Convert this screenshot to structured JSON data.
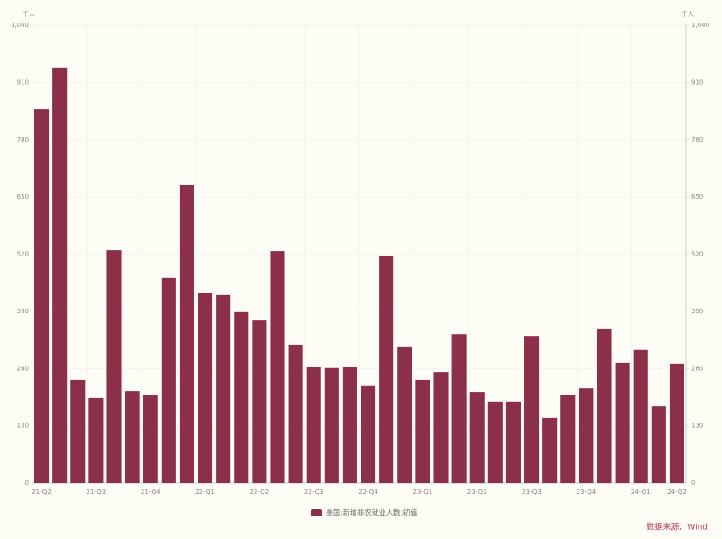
{
  "chart_data": {
    "type": "bar",
    "y_unit": "千人",
    "y2_unit": "千人",
    "categories": [
      "21-Q2",
      null,
      null,
      "21-Q3",
      null,
      null,
      "21-Q4",
      null,
      null,
      "22-Q1",
      null,
      null,
      "22-Q2",
      null,
      null,
      "22-Q3",
      null,
      null,
      "22-Q4",
      null,
      null,
      "23-Q1",
      null,
      null,
      "23-Q2",
      null,
      null,
      "23-Q3",
      null,
      null,
      "23-Q4",
      null,
      null,
      "24-Q1",
      null,
      "24-Q2"
    ],
    "series": [
      {
        "name": "美国:新增非农就业人数:初值",
        "color": "#8b3048",
        "values": [
          849,
          944,
          234,
          193,
          529,
          209,
          199,
          466,
          677,
          431,
          427,
          388,
          371,
          527,
          314,
          263,
          261,
          263,
          222,
          515,
          310,
          234,
          252,
          338,
          207,
          185,
          185,
          334,
          148,
          199,
          215,
          351,
          273,
          302,
          174,
          271
        ]
      }
    ],
    "ylim": [
      0,
      1040
    ],
    "yticks": [
      0,
      130,
      260,
      390,
      520,
      650,
      780,
      910,
      {
        "value": 1040,
        "label": "1,040"
      }
    ],
    "y2lim": [
      0,
      1040
    ],
    "y2ticks": [
      0,
      130,
      260,
      390,
      520,
      650,
      780,
      910,
      {
        "value": 1040,
        "label": "1,040"
      }
    ],
    "grid": true,
    "legend": "bottom",
    "source": "数据来源：Wind"
  }
}
